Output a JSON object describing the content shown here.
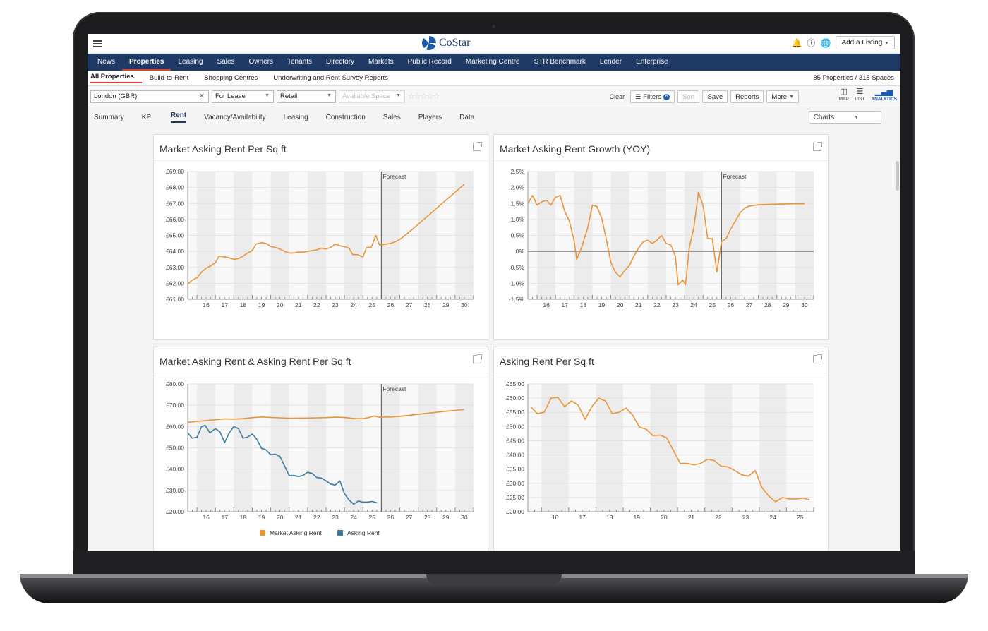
{
  "app": {
    "logo_text": "CoStar",
    "add_listing": "Add a Listing"
  },
  "nav": [
    "News",
    "Properties",
    "Leasing",
    "Sales",
    "Owners",
    "Tenants",
    "Directory",
    "Markets",
    "Public Record",
    "Marketing Centre",
    "STR Benchmark",
    "Lender",
    "Enterprise"
  ],
  "subnav": {
    "items": [
      "All Properties",
      "Build-to-Rent",
      "Shopping Centres",
      "Underwriting and Rent Survey Reports"
    ],
    "count": "85 Properties / 318 Spaces"
  },
  "filters": {
    "location": "London (GBR)",
    "type": "For Lease",
    "property": "Retail",
    "space": "Available Space",
    "clear": "Clear",
    "filters": "Filters",
    "filters_count": "6",
    "sort": "Sort",
    "save": "Save",
    "reports": "Reports",
    "more": "More"
  },
  "views": [
    "MAP",
    "LIST",
    "ANALYTICS"
  ],
  "tabs": [
    "Summary",
    "KPI",
    "Rent",
    "Vacancy/Availability",
    "Leasing",
    "Construction",
    "Sales",
    "Players",
    "Data"
  ],
  "charts_button": "Charts",
  "forecast_label": "Forecast",
  "chart_data": [
    {
      "type": "line",
      "title": "Market Asking Rent Per Sq ft",
      "x_ticks": [
        "16",
        "17",
        "18",
        "19",
        "20",
        "21",
        "22",
        "23",
        "24",
        "25",
        "26",
        "27",
        "28",
        "29",
        "30"
      ],
      "y_ticks": [
        "£61.00",
        "£62.00",
        "£63.00",
        "£64.00",
        "£65.00",
        "£66.00",
        "£67.00",
        "£68.00",
        "£69.00"
      ],
      "ylim": [
        61,
        69
      ],
      "xlim": [
        15.5,
        31
      ],
      "forecast_x": 26,
      "series": [
        {
          "color": "#e8953a",
          "points": [
            [
              15.5,
              61.95
            ],
            [
              15.75,
              62.2
            ],
            [
              16,
              62.35
            ],
            [
              16.25,
              62.7
            ],
            [
              16.5,
              62.95
            ],
            [
              16.75,
              63.1
            ],
            [
              17,
              63.3
            ],
            [
              17.2,
              63.7
            ],
            [
              17.5,
              63.65
            ],
            [
              17.75,
              63.6
            ],
            [
              18,
              63.5
            ],
            [
              18.25,
              63.55
            ],
            [
              18.5,
              63.7
            ],
            [
              18.75,
              63.9
            ],
            [
              19,
              64.05
            ],
            [
              19.2,
              64.45
            ],
            [
              19.5,
              64.55
            ],
            [
              19.75,
              64.5
            ],
            [
              20,
              64.3
            ],
            [
              20.25,
              64.25
            ],
            [
              20.5,
              64.15
            ],
            [
              20.75,
              64.0
            ],
            [
              21,
              63.9
            ],
            [
              21.25,
              63.9
            ],
            [
              21.5,
              63.95
            ],
            [
              21.75,
              63.95
            ],
            [
              22,
              64.0
            ],
            [
              22.25,
              64.05
            ],
            [
              22.5,
              64.1
            ],
            [
              22.75,
              64.2
            ],
            [
              23,
              64.15
            ],
            [
              23.25,
              64.25
            ],
            [
              23.5,
              64.45
            ],
            [
              23.75,
              64.35
            ],
            [
              24,
              64.3
            ],
            [
              24.25,
              64.2
            ],
            [
              24.45,
              63.8
            ],
            [
              24.7,
              63.8
            ],
            [
              25,
              63.65
            ],
            [
              25.2,
              64.25
            ],
            [
              25.45,
              64.25
            ],
            [
              25.7,
              65.0
            ],
            [
              25.9,
              64.4
            ],
            [
              26.25,
              64.45
            ],
            [
              26.5,
              64.5
            ],
            [
              26.75,
              64.6
            ],
            [
              27,
              64.75
            ],
            [
              27.5,
              65.2
            ],
            [
              28,
              65.7
            ],
            [
              28.5,
              66.2
            ],
            [
              29,
              66.7
            ],
            [
              29.5,
              67.2
            ],
            [
              30,
              67.7
            ],
            [
              30.5,
              68.2
            ]
          ]
        }
      ]
    },
    {
      "type": "line",
      "title": "Market Asking Rent Growth (YOY)",
      "x_ticks": [
        "16",
        "17",
        "18",
        "19",
        "20",
        "21",
        "22",
        "23",
        "24",
        "25",
        "26",
        "27",
        "28",
        "29",
        "30"
      ],
      "y_ticks": [
        "-1.5%",
        "-1.0%",
        "-0.5%",
        "0%",
        "0.5%",
        "1.0%",
        "1.5%",
        "2.0%",
        "2.5%"
      ],
      "ylim": [
        -1.5,
        2.5
      ],
      "xlim": [
        15.5,
        31
      ],
      "forecast_x": 26,
      "zero_line": true,
      "series": [
        {
          "color": "#e8953a",
          "points": [
            [
              15.5,
              1.5
            ],
            [
              15.75,
              1.75
            ],
            [
              16,
              1.45
            ],
            [
              16.25,
              1.55
            ],
            [
              16.5,
              1.6
            ],
            [
              16.75,
              1.45
            ],
            [
              17,
              1.7
            ],
            [
              17.25,
              1.75
            ],
            [
              17.5,
              1.25
            ],
            [
              17.75,
              0.95
            ],
            [
              18,
              0.35
            ],
            [
              18.15,
              -0.25
            ],
            [
              18.4,
              0.1
            ],
            [
              18.75,
              0.75
            ],
            [
              19,
              1.45
            ],
            [
              19.25,
              1.4
            ],
            [
              19.5,
              1.05
            ],
            [
              19.75,
              0.4
            ],
            [
              20,
              -0.35
            ],
            [
              20.25,
              -0.65
            ],
            [
              20.5,
              -0.8
            ],
            [
              20.75,
              -0.6
            ],
            [
              21,
              -0.45
            ],
            [
              21.25,
              -0.15
            ],
            [
              21.5,
              0.1
            ],
            [
              21.75,
              0.3
            ],
            [
              22,
              0.35
            ],
            [
              22.25,
              0.25
            ],
            [
              22.5,
              0.35
            ],
            [
              22.75,
              0.5
            ],
            [
              23,
              0.25
            ],
            [
              23.25,
              0.2
            ],
            [
              23.5,
              -0.15
            ],
            [
              23.65,
              -1.05
            ],
            [
              23.9,
              -0.9
            ],
            [
              24.05,
              -1.05
            ],
            [
              24.25,
              0.1
            ],
            [
              24.5,
              0.75
            ],
            [
              24.75,
              1.85
            ],
            [
              25,
              1.45
            ],
            [
              25.25,
              0.4
            ],
            [
              25.5,
              0.4
            ],
            [
              25.75,
              -0.65
            ],
            [
              26,
              0.3
            ],
            [
              26.25,
              0.4
            ],
            [
              26.5,
              0.7
            ],
            [
              26.75,
              0.95
            ],
            [
              27,
              1.2
            ],
            [
              27.25,
              1.35
            ],
            [
              27.5,
              1.42
            ],
            [
              28,
              1.46
            ],
            [
              29,
              1.48
            ],
            [
              30,
              1.49
            ],
            [
              30.5,
              1.49
            ]
          ]
        }
      ]
    },
    {
      "type": "line",
      "title": "Market Asking Rent & Asking Rent Per Sq ft",
      "x_ticks": [
        "16",
        "17",
        "18",
        "19",
        "20",
        "21",
        "22",
        "23",
        "24",
        "25",
        "26",
        "27",
        "28",
        "29",
        "30"
      ],
      "y_ticks": [
        "£20.00",
        "£30.00",
        "£40.00",
        "£50.00",
        "£60.00",
        "£70.00",
        "£80.00"
      ],
      "ylim": [
        20,
        80
      ],
      "xlim": [
        15.5,
        31
      ],
      "forecast_x": 26,
      "legend": [
        "Market Asking Rent",
        "Asking Rent"
      ],
      "series": [
        {
          "name": "Market Asking Rent",
          "color": "#e8953a",
          "points": [
            [
              15.5,
              62
            ],
            [
              16,
              62.4
            ],
            [
              16.5,
              62.8
            ],
            [
              17,
              63.2
            ],
            [
              17.5,
              63.6
            ],
            [
              18,
              63.5
            ],
            [
              18.5,
              63.7
            ],
            [
              19,
              64.2
            ],
            [
              19.5,
              64.5
            ],
            [
              20,
              64.3
            ],
            [
              20.5,
              64.1
            ],
            [
              21,
              63.9
            ],
            [
              21.5,
              63.95
            ],
            [
              22,
              64.0
            ],
            [
              22.5,
              64.1
            ],
            [
              23,
              64.2
            ],
            [
              23.5,
              64.4
            ],
            [
              24,
              64.3
            ],
            [
              24.5,
              63.8
            ],
            [
              25,
              63.7
            ],
            [
              25.3,
              64.2
            ],
            [
              25.6,
              65.0
            ],
            [
              25.9,
              64.4
            ],
            [
              26.5,
              64.5
            ],
            [
              27,
              64.8
            ],
            [
              28,
              65.7
            ],
            [
              29,
              66.7
            ],
            [
              30,
              67.6
            ],
            [
              30.5,
              68.0
            ]
          ]
        },
        {
          "name": "Asking Rent",
          "color": "#3d7a9b",
          "points": [
            [
              15.5,
              57
            ],
            [
              15.75,
              54.5
            ],
            [
              16,
              55
            ],
            [
              16.25,
              60
            ],
            [
              16.45,
              60.5
            ],
            [
              16.7,
              57
            ],
            [
              17,
              59
            ],
            [
              17.25,
              57.5
            ],
            [
              17.5,
              52.5
            ],
            [
              17.75,
              57
            ],
            [
              18,
              60
            ],
            [
              18.25,
              59
            ],
            [
              18.5,
              54.5
            ],
            [
              18.75,
              55
            ],
            [
              19,
              56.5
            ],
            [
              19.25,
              54
            ],
            [
              19.5,
              49.8
            ],
            [
              19.75,
              49
            ],
            [
              20,
              46.8
            ],
            [
              20.25,
              47
            ],
            [
              20.5,
              46
            ],
            [
              20.75,
              41.5
            ],
            [
              21,
              37
            ],
            [
              21.25,
              37
            ],
            [
              21.5,
              36.5
            ],
            [
              21.75,
              37
            ],
            [
              22,
              38.5
            ],
            [
              22.25,
              38
            ],
            [
              22.5,
              36
            ],
            [
              22.75,
              35.8
            ],
            [
              23,
              34.5
            ],
            [
              23.25,
              33
            ],
            [
              23.5,
              32.5
            ],
            [
              23.75,
              34.5
            ],
            [
              24,
              28.5
            ],
            [
              24.25,
              25.5
            ],
            [
              24.5,
              23.5
            ],
            [
              24.75,
              25
            ],
            [
              25,
              24.5
            ],
            [
              25.25,
              24.5
            ],
            [
              25.5,
              24.8
            ],
            [
              25.75,
              24.2
            ]
          ]
        }
      ]
    },
    {
      "type": "line",
      "title": "Asking Rent Per Sq ft",
      "x_ticks": [
        "16",
        "17",
        "18",
        "19",
        "20",
        "21",
        "22",
        "23",
        "24",
        "25"
      ],
      "y_ticks": [
        "£20.00",
        "£25.00",
        "£30.00",
        "£35.00",
        "£40.00",
        "£45.00",
        "£50.00",
        "£55.00",
        "£60.00",
        "£65.00"
      ],
      "ylim": [
        20,
        65
      ],
      "xlim": [
        15.5,
        26
      ],
      "series": [
        {
          "color": "#e8953a",
          "points": [
            [
              15.6,
              57
            ],
            [
              15.85,
              54.5
            ],
            [
              16.1,
              55
            ],
            [
              16.35,
              60
            ],
            [
              16.6,
              60.3
            ],
            [
              16.85,
              57
            ],
            [
              17.1,
              59
            ],
            [
              17.35,
              57.5
            ],
            [
              17.6,
              52.5
            ],
            [
              17.85,
              57
            ],
            [
              18.1,
              60
            ],
            [
              18.35,
              59
            ],
            [
              18.6,
              54.5
            ],
            [
              18.85,
              55
            ],
            [
              19.1,
              56.5
            ],
            [
              19.35,
              54
            ],
            [
              19.6,
              49.8
            ],
            [
              19.85,
              49
            ],
            [
              20.1,
              46.8
            ],
            [
              20.35,
              47
            ],
            [
              20.6,
              46
            ],
            [
              20.85,
              41.5
            ],
            [
              21.1,
              37
            ],
            [
              21.35,
              37
            ],
            [
              21.6,
              36.5
            ],
            [
              21.85,
              37
            ],
            [
              22.1,
              38.5
            ],
            [
              22.35,
              38
            ],
            [
              22.6,
              36
            ],
            [
              22.85,
              35.8
            ],
            [
              23.1,
              34.5
            ],
            [
              23.35,
              33
            ],
            [
              23.6,
              32.5
            ],
            [
              23.85,
              34.5
            ],
            [
              24.1,
              28.5
            ],
            [
              24.35,
              25.5
            ],
            [
              24.6,
              23.5
            ],
            [
              24.85,
              25
            ],
            [
              25.1,
              24.5
            ],
            [
              25.35,
              24.5
            ],
            [
              25.6,
              24.8
            ],
            [
              25.85,
              24.2
            ]
          ]
        }
      ]
    }
  ]
}
